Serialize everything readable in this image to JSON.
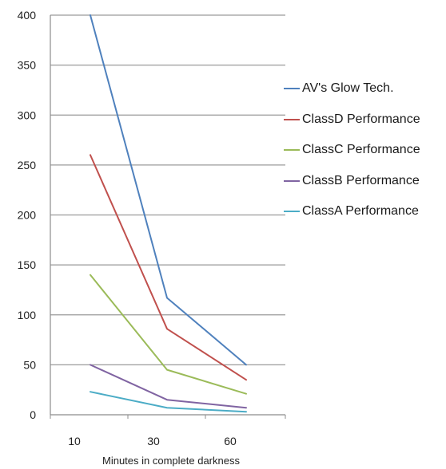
{
  "chart_data": {
    "type": "line",
    "title": "",
    "xlabel": "Minutes in complete darkness",
    "ylabel": "",
    "categories": [
      "10",
      "30",
      "60"
    ],
    "yticks": [
      "0",
      "50",
      "100",
      "150",
      "200",
      "250",
      "300",
      "350",
      "400"
    ],
    "ylim": [
      0,
      400
    ],
    "grid": true,
    "legend_position": "right",
    "series": [
      {
        "name": "AV's Glow Tech.",
        "color": "#4f81bd",
        "values": [
          400,
          117,
          50
        ]
      },
      {
        "name": "ClassD Performance",
        "color": "#c0504d",
        "values": [
          260,
          86,
          35
        ]
      },
      {
        "name": "ClassC Performance",
        "color": "#9bbb59",
        "values": [
          140,
          45,
          21
        ]
      },
      {
        "name": "ClassB Performance",
        "color": "#8064a2",
        "values": [
          50,
          15,
          7
        ]
      },
      {
        "name": "ClassA Performance",
        "color": "#4bacc6",
        "values": [
          23,
          7,
          3
        ]
      }
    ]
  }
}
